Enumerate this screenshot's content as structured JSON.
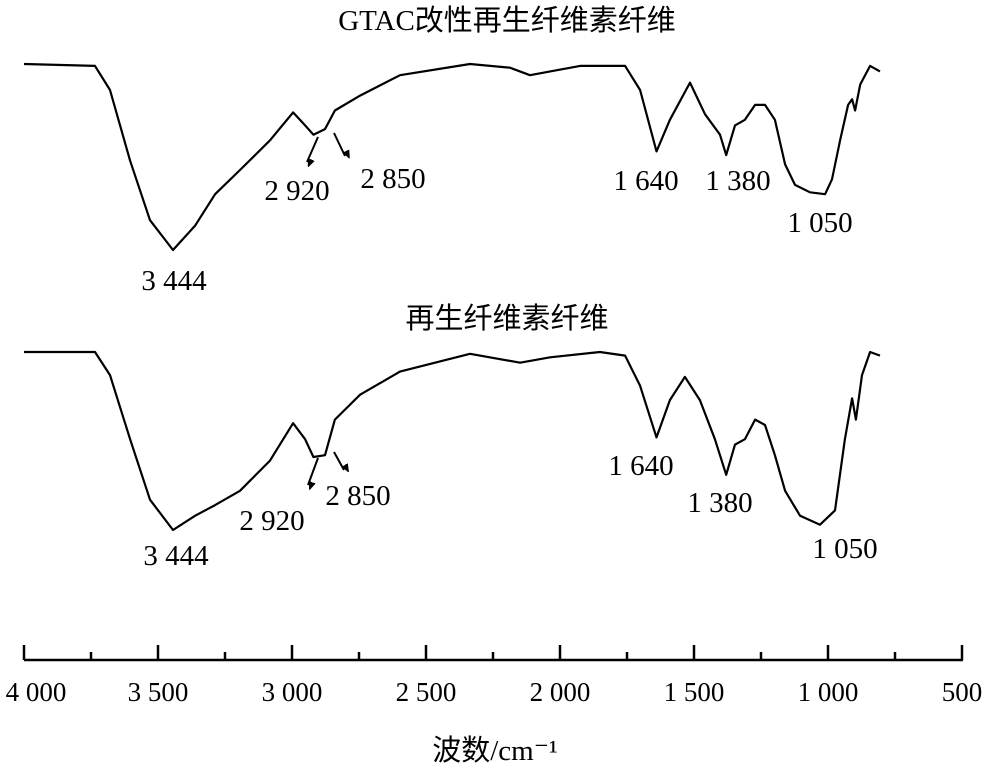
{
  "chart_data": {
    "type": "line",
    "title": "",
    "xlabel": "波数/cm⁻¹",
    "ylabel": "",
    "xlim": [
      4000,
      500
    ],
    "x_reversed": true,
    "y_units": "relative transmittance (%), each spectrum normalized to its own panel",
    "grid": false,
    "legend": "none",
    "x_ticks": [
      4000,
      3500,
      3000,
      2500,
      2000,
      1500,
      1000,
      500
    ],
    "x_tick_labels": [
      "4 000",
      "3 500",
      "3 000",
      "2 500",
      "2 000",
      "1 500",
      "1 000",
      "500"
    ],
    "x_minor_ticks": [
      3750,
      3250,
      2750,
      2250,
      1750,
      1250,
      750
    ],
    "series": [
      {
        "name": "GTAC改性再生纤维素纤维",
        "x": [
          4000,
          3735,
          3679,
          3604,
          3530,
          3444,
          3362,
          3287,
          3194,
          3082,
          2996,
          2951,
          2920,
          2877,
          2840,
          2746,
          2597,
          2336,
          2187,
          2112,
          2037,
          1925,
          1757,
          1701,
          1640,
          1590,
          1515,
          1459,
          1403,
          1380,
          1347,
          1310,
          1272,
          1235,
          1198,
          1160,
          1123,
          1067,
          1011,
          985,
          955,
          925,
          910,
          899,
          880,
          843,
          806
        ],
        "y": [
          100,
          99,
          86,
          48,
          16,
          0,
          13,
          30,
          43,
          59,
          74,
          67,
          62,
          65,
          75,
          83,
          94,
          100,
          98,
          94,
          96,
          99,
          99,
          86,
          53,
          70,
          90,
          73,
          62,
          51,
          67,
          70,
          78,
          78,
          70,
          46,
          35,
          31,
          30,
          38,
          59,
          78,
          81,
          75,
          89,
          99,
          96
        ],
        "peak_labels": [
          "3 444",
          "2 920",
          "2 850",
          "1 640",
          "1 380",
          "1 050"
        ]
      },
      {
        "name": "再生纤维素纤维",
        "x": [
          4000,
          3735,
          3679,
          3604,
          3530,
          3444,
          3362,
          3287,
          3194,
          3082,
          2996,
          2951,
          2920,
          2877,
          2840,
          2746,
          2597,
          2336,
          2149,
          2037,
          1851,
          1757,
          1701,
          1640,
          1590,
          1534,
          1478,
          1422,
          1380,
          1347,
          1310,
          1272,
          1235,
          1198,
          1160,
          1104,
          1030,
          974,
          937,
          910,
          896,
          873,
          843,
          806
        ],
        "y": [
          100,
          100,
          87,
          51,
          17,
          0,
          8,
          14,
          22,
          39,
          60,
          51,
          41,
          42,
          62,
          76,
          89,
          99,
          94,
          97,
          100,
          98,
          81,
          52,
          73,
          86,
          73,
          51,
          31,
          48,
          51,
          62,
          59,
          42,
          22,
          8,
          3,
          11,
          51,
          74,
          62,
          87,
          100,
          98
        ],
        "peak_labels": [
          "3 444",
          "2 920",
          "2 850",
          "1 640",
          "1 380",
          "1 050"
        ]
      }
    ]
  }
}
